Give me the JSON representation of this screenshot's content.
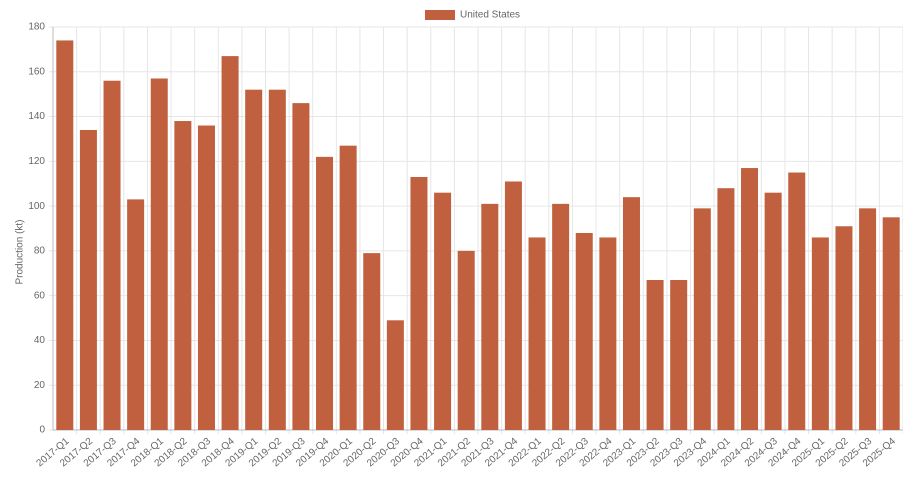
{
  "chart_data": {
    "type": "bar",
    "y_label": "Production (kt)",
    "categories": [
      "2017-Q1",
      "2017-Q2",
      "2017-Q3",
      "2017-Q4",
      "2018-Q1",
      "2018-Q2",
      "2018-Q3",
      "2018-Q4",
      "2019-Q1",
      "2019-Q2",
      "2019-Q3",
      "2019-Q4",
      "2020-Q1",
      "2020-Q2",
      "2020-Q3",
      "2020-Q4",
      "2021-Q1",
      "2021-Q2",
      "2021-Q3",
      "2021-Q4",
      "2022-Q1",
      "2022-Q2",
      "2022-Q3",
      "2022-Q4",
      "2023-Q1",
      "2023-Q2",
      "2023-Q3",
      "2023-Q4",
      "2024-Q1",
      "2024-Q2",
      "2024-Q3",
      "2024-Q4",
      "2025-Q1",
      "2025-Q2",
      "2025-Q3",
      "2025-Q4"
    ],
    "series": [
      {
        "name": "United States",
        "color": "#c0603e",
        "values": [
          174,
          134,
          156,
          103,
          157,
          138,
          136,
          167,
          152,
          152,
          146,
          122,
          127,
          79,
          49,
          113,
          106,
          80,
          101,
          111,
          86,
          101,
          88,
          86,
          104,
          67,
          67,
          99,
          108,
          117,
          106,
          115,
          86,
          91,
          99,
          95
        ]
      }
    ],
    "ylim": [
      0,
      180
    ],
    "yticks": [
      0,
      20,
      40,
      60,
      80,
      100,
      120,
      140,
      160,
      180
    ],
    "grid": true,
    "legend": "top"
  }
}
